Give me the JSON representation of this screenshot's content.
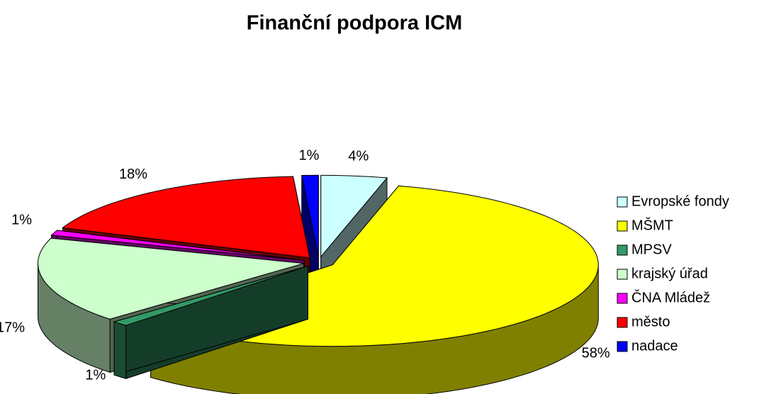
{
  "chart_data": {
    "type": "pie",
    "title": "Finanční podpora ICM",
    "categories": [
      "Evropské fondy",
      "MŠMT",
      "MPSV",
      "krajský úřad",
      "ČNA Mládež",
      "město",
      "nadace"
    ],
    "values": [
      4,
      58,
      1,
      17,
      1,
      18,
      1
    ],
    "value_labels": [
      "4%",
      "58%",
      "1%",
      "17%",
      "1%",
      "18%",
      "1%"
    ],
    "colors": [
      "#ccffff",
      "#ffff00",
      "#339966",
      "#ccffcc",
      "#ff00ff",
      "#ff0000",
      "#0000ff"
    ],
    "legend": "right"
  }
}
